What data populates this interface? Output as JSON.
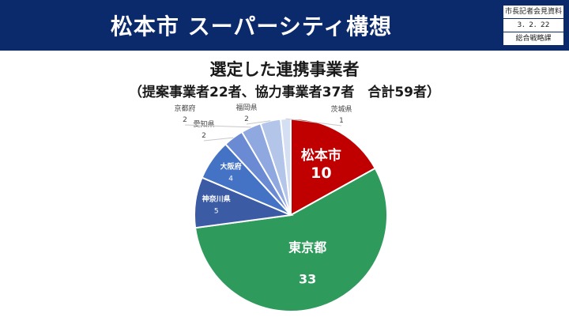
{
  "header": {
    "title": "松本市 スーパーシティ構想",
    "info_lines": [
      "市長記者会見資料",
      "3．2．22",
      "総合戦略課"
    ]
  },
  "chart_data": {
    "type": "pie",
    "title": "選定した連携事業者",
    "subtitle": "（提案事業者22者、協力事業者37者　合計59者）",
    "slices": [
      {
        "label": "松本市",
        "value": 10,
        "color": "#c00000"
      },
      {
        "label": "東京都",
        "value": 33,
        "color": "#2e9a5c"
      },
      {
        "label": "神奈川県",
        "value": 5,
        "color": "#3b5ba5"
      },
      {
        "label": "大阪府",
        "value": 4,
        "color": "#4472c4"
      },
      {
        "label": "愛知県",
        "value": 2,
        "color": "#6a8ad3"
      },
      {
        "label": "京都府",
        "value": 2,
        "color": "#8fa8df"
      },
      {
        "label": "福岡県",
        "value": 2,
        "color": "#b4c5ea"
      },
      {
        "label": "茨城県",
        "value": 1,
        "color": "#d5dff3"
      }
    ]
  }
}
